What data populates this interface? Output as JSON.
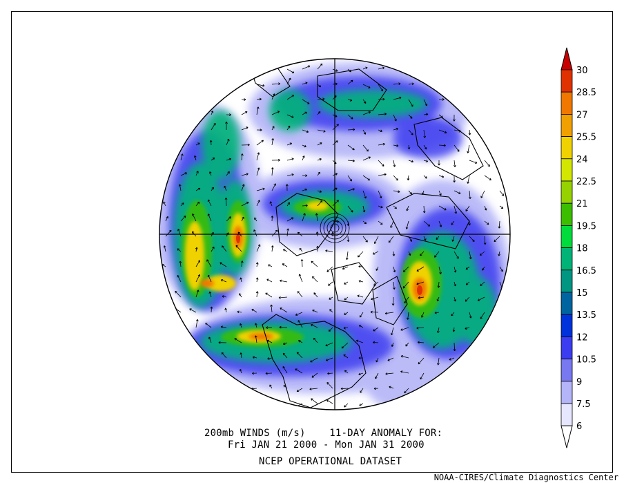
{
  "title": {
    "line1": "200mb WINDS (m/s)    11-DAY ANOMALY FOR:",
    "line2": "Fri JAN 21 2000 - Mon JAN 31 2000",
    "line3": "NCEP OPERATIONAL DATASET"
  },
  "credit": "NOAA-CIRES/Climate Diagnostics Center",
  "colorbar": {
    "labels": [
      "30",
      "28.5",
      "27",
      "25.5",
      "24",
      "22.5",
      "21",
      "19.5",
      "18",
      "16.5",
      "15",
      "13.5",
      "12",
      "10.5",
      "9",
      "7.5",
      "6"
    ],
    "colors": [
      "#c80000",
      "#e03200",
      "#f07800",
      "#f0a000",
      "#f0d200",
      "#d2e600",
      "#96d200",
      "#3cbe00",
      "#00dc3c",
      "#00b478",
      "#009682",
      "#0064a0",
      "#0032dc",
      "#3c3cf0",
      "#7878f0",
      "#b4b4f8",
      "#e6e6ff"
    ]
  },
  "field_colors": {
    "land_outline": "#000000",
    "map_border": "#000000"
  }
}
